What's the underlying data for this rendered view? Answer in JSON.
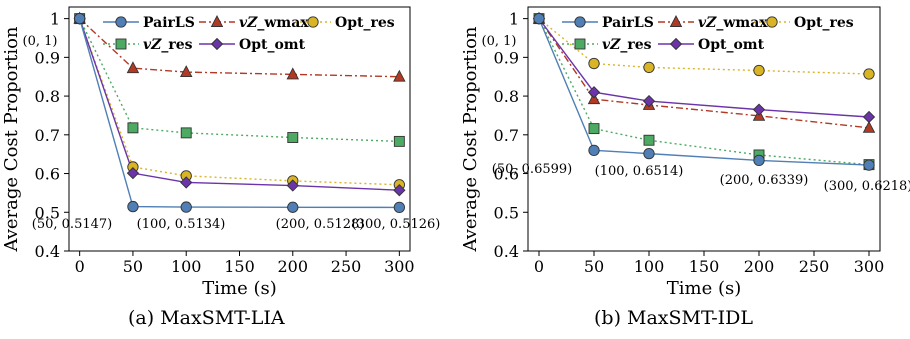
{
  "colors": {
    "PairLS": "#4f7fb5",
    "vZ_wmax": "#b23a25",
    "Opt_res_y": "#d9b526",
    "vZ_res": "#4daa63",
    "Opt_omt": "#6b34a8"
  },
  "captions": [
    "(a) MaxSMT-LIA",
    "(b) MaxSMT-IDL"
  ],
  "chart_data": [
    {
      "type": "line",
      "title": "",
      "xlabel": "Time (s)",
      "ylabel": "Average Cost Proportion",
      "xlim": [
        -10,
        310
      ],
      "ylim": [
        0.4,
        1.03
      ],
      "xticks": [
        0,
        50,
        100,
        150,
        200,
        250,
        300
      ],
      "yticks": [
        0.4,
        0.5,
        0.6,
        0.7,
        0.8,
        0.9,
        1.0
      ],
      "ytick_labels": [
        "0.4",
        "0.5",
        "0.6",
        "0.7",
        "0.8",
        "0.9",
        "1"
      ],
      "x": [
        0,
        50,
        100,
        200,
        300
      ],
      "legend_position": "top-right",
      "series": [
        {
          "name": "PairLS",
          "values": [
            1,
            0.5147,
            0.5134,
            0.5128,
            0.5126
          ],
          "marker": "circle",
          "dash": "solid"
        },
        {
          "name": "vZ_wmax",
          "values": [
            1,
            0.872,
            0.862,
            0.856,
            0.85
          ],
          "marker": "triangle",
          "dash": "dashdot"
        },
        {
          "name": "Opt_res",
          "values": [
            1,
            0.617,
            0.594,
            0.581,
            0.571
          ],
          "marker": "circle",
          "dash": "dotted"
        },
        {
          "name": "vZ_res",
          "values": [
            1,
            0.718,
            0.705,
            0.693,
            0.683
          ],
          "marker": "square",
          "dash": "dotted"
        },
        {
          "name": "Opt_omt",
          "values": [
            1,
            0.601,
            0.577,
            0.569,
            0.557
          ],
          "marker": "diamond",
          "dash": "solid"
        }
      ],
      "annotations": [
        "(0, 1)",
        "(50, 0.5147)",
        "(100, 0.5134)",
        "(200, 0.5128)",
        "(300, 0.5126)"
      ]
    },
    {
      "type": "line",
      "title": "",
      "xlabel": "Time (s)",
      "ylabel": "Average Cost Proportion",
      "xlim": [
        -10,
        310
      ],
      "ylim": [
        0.4,
        1.03
      ],
      "xticks": [
        0,
        50,
        100,
        150,
        200,
        250,
        300
      ],
      "yticks": [
        0.4,
        0.5,
        0.6,
        0.7,
        0.8,
        0.9,
        1.0
      ],
      "ytick_labels": [
        "0.4",
        "0.5",
        "0.6",
        "0.7",
        "0.8",
        "0.9",
        "1"
      ],
      "x": [
        0,
        50,
        100,
        200,
        300
      ],
      "legend_position": "top-right",
      "series": [
        {
          "name": "PairLS",
          "values": [
            1,
            0.6599,
            0.6514,
            0.6339,
            0.6218
          ],
          "marker": "circle",
          "dash": "solid"
        },
        {
          "name": "vZ_wmax",
          "values": [
            1,
            0.792,
            0.777,
            0.749,
            0.718
          ],
          "marker": "triangle",
          "dash": "dashdot"
        },
        {
          "name": "Opt_res",
          "values": [
            1,
            0.884,
            0.874,
            0.866,
            0.857
          ],
          "marker": "circle",
          "dash": "dotted"
        },
        {
          "name": "vZ_res",
          "values": [
            1,
            0.716,
            0.686,
            0.648,
            0.623
          ],
          "marker": "square",
          "dash": "dotted"
        },
        {
          "name": "Opt_omt",
          "values": [
            1,
            0.81,
            0.787,
            0.765,
            0.746
          ],
          "marker": "diamond",
          "dash": "solid"
        }
      ],
      "annotations": [
        "(0, 1)",
        "(50, 0.6599)",
        "(100, 0.6514)",
        "(200, 0.6339)",
        "(300, 0.6218)"
      ]
    }
  ]
}
